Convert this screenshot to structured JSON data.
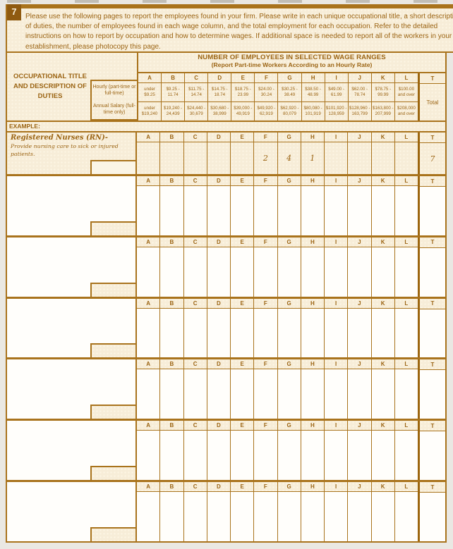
{
  "page": {
    "item_number": "7",
    "instructions": "Please use the following pages to report the employees found in your firm. Please write in each unique occupational title, a short description of duties, the number of employees found in each wage column, and the total employment for each occupation. Refer to the detailed instructions on how to report by occupation and how to determine wages. If additional space is needed to report all of the workers in your establishment, please photocopy this page."
  },
  "table": {
    "left_header": "OCCUPATIONAL TITLE AND DESCRIPTION OF DUTIES",
    "band_title": "NUMBER OF EMPLOYEES IN SELECTED WAGE RANGES",
    "band_subtitle": "(Report Part-time Workers According to an Hourly Rate)",
    "hourly_label": "Hourly (part-time or full-time)",
    "annual_label": "Annual Salary (full-time only)",
    "total_letter": "T",
    "total_label": "Total",
    "letters": [
      "A",
      "B",
      "C",
      "D",
      "E",
      "F",
      "G",
      "H",
      "I",
      "J",
      "K",
      "L"
    ],
    "hourly_ranges": [
      "under $9.25",
      "$9.25 - 11.74",
      "$11.75 - 14.74",
      "$14.75 - 18.74",
      "$18.75 - 23.99",
      "$24.00 - 30.24",
      "$30.25 - 38.49",
      "$38.50 - 48.99",
      "$49.00 - 61.99",
      "$62.00 - 78.74",
      "$78.75 - 99.99",
      "$100.00 and over"
    ],
    "annual_ranges": [
      "under $19,240",
      "$19,240 - 24,439",
      "$24,440 - 30,679",
      "$30,680 - 38,999",
      "$39,000 - 49,919",
      "$49,920 - 62,919",
      "$62,920 - 80,079",
      "$80,080 - 101,919",
      "$101,920 - 128,959",
      "$128,960 - 163,799",
      "$163,800 - 207,999",
      "$208,000 and over"
    ]
  },
  "example": {
    "section_label": "EXAMPLE:",
    "title": "Registered Nurses (RN)-",
    "description": "Provide nursing care to sick or injured patients.",
    "values": [
      "",
      "",
      "",
      "",
      "",
      "2",
      "4",
      "1",
      "",
      "",
      "",
      ""
    ],
    "total": "7"
  },
  "blank_row_count": 6
}
